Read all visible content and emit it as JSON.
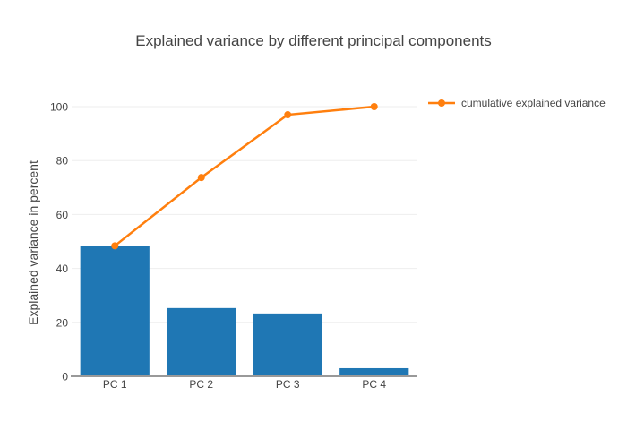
{
  "chart_data": {
    "type": "bar",
    "title": "Explained variance by different principal components",
    "xlabel": "",
    "ylabel": "Explained variance in percent",
    "categories": [
      "PC 1",
      "PC 2",
      "PC 3",
      "PC 4"
    ],
    "series": [
      {
        "name": "explained variance",
        "type": "bar",
        "color": "#1f77b4",
        "values": [
          48.4,
          25.3,
          23.3,
          3.0
        ],
        "show_in_legend": false
      },
      {
        "name": "cumulative explained variance",
        "type": "line",
        "color": "#ff7f0e",
        "marker": "circle",
        "values": [
          48.4,
          73.7,
          97.0,
          100.0
        ],
        "show_in_legend": true
      }
    ],
    "yticks": [
      0,
      20,
      40,
      60,
      80,
      100
    ],
    "ylim": [
      0,
      104.7
    ],
    "grid": true,
    "legend_position": "top-right",
    "colors": {
      "grid": "#eeeeee",
      "zeroline": "#999999",
      "text": "#444444",
      "background": "#ffffff"
    }
  }
}
